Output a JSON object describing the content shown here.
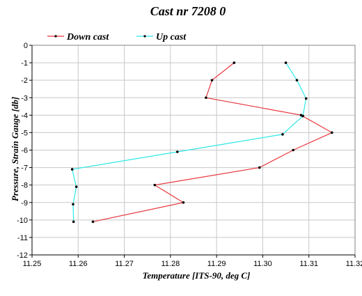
{
  "chart_data": {
    "type": "line",
    "title": "Cast nr 7208 0",
    "xlabel": "Temperature [ITS-90, deg C]",
    "ylabel": "Pressure, Strain Gauge [db]",
    "xlim": [
      11.25,
      11.32
    ],
    "ylim": [
      -12,
      0
    ],
    "x_ticks": [
      "11.25",
      "11.26",
      "11.27",
      "11.28",
      "11.29",
      "11.30",
      "11.31",
      "11.32"
    ],
    "y_ticks": [
      "0",
      "-1",
      "-2",
      "-3",
      "-4",
      "-5",
      "-6",
      "-7",
      "-8",
      "-9",
      "-10",
      "-11",
      "-12"
    ],
    "grid": true,
    "legend_position": "top-left",
    "series": [
      {
        "name": "Down cast",
        "color": "#e8343a",
        "points": [
          [
            11.2938,
            -1
          ],
          [
            11.289,
            -2
          ],
          [
            11.2877,
            -3
          ],
          [
            11.3083,
            -4
          ],
          [
            11.315,
            -5
          ],
          [
            11.3066,
            -6
          ],
          [
            11.2993,
            -7
          ],
          [
            11.2766,
            -8
          ],
          [
            11.2828,
            -9
          ],
          [
            11.2632,
            -10.1
          ]
        ]
      },
      {
        "name": "Up cast",
        "color": "#2ee8e8",
        "points": [
          [
            11.259,
            -10.1
          ],
          [
            11.2589,
            -9.1
          ],
          [
            11.2596,
            -8.1
          ],
          [
            11.2587,
            -7.1
          ],
          [
            11.2815,
            -6.1
          ],
          [
            11.3043,
            -5.1
          ],
          [
            11.3087,
            -4.05
          ],
          [
            11.3094,
            -3.05
          ],
          [
            11.3074,
            -2
          ],
          [
            11.305,
            -1
          ]
        ]
      }
    ]
  }
}
